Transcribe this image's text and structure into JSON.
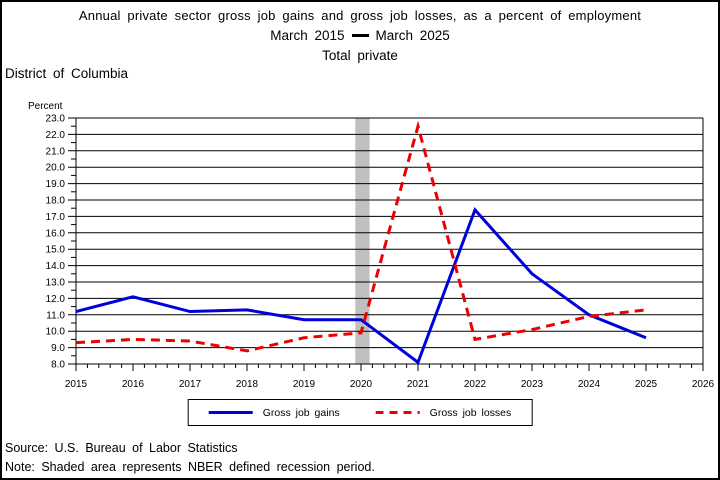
{
  "chart_data": {
    "type": "line",
    "title": "Annual private sector gross job gains and gross job losses, as a percent of employment",
    "period": {
      "from": "March 2015",
      "to": "March 2025"
    },
    "subtitle": "Total private",
    "region": "District of Columbia",
    "ylabel": "Percent",
    "xlabel": "",
    "x": [
      2015,
      2016,
      2017,
      2018,
      2019,
      2020,
      2021,
      2022,
      2023,
      2024,
      2025
    ],
    "series": [
      {
        "name": "Gross job gains",
        "color": "#0000dd",
        "style": "solid",
        "values": [
          11.2,
          12.1,
          11.2,
          11.3,
          10.7,
          10.7,
          8.1,
          17.4,
          13.5,
          11.0,
          9.6
        ]
      },
      {
        "name": "Gross job losses",
        "color": "#ee0000",
        "style": "dashed",
        "values": [
          9.3,
          9.5,
          9.4,
          8.8,
          9.6,
          9.9,
          22.5,
          9.5,
          10.1,
          10.9,
          11.3
        ]
      }
    ],
    "xlim": [
      2015,
      2026
    ],
    "ylim": [
      8.0,
      23.0
    ],
    "xticks": [
      2015,
      2016,
      2017,
      2018,
      2019,
      2020,
      2021,
      2022,
      2023,
      2024,
      2025,
      2026
    ],
    "x_minor_divisions": 5,
    "ytick_step": 1.0,
    "ytick_minor_step": 0.5,
    "grid": "horizontal-only",
    "legend_position": "bottom-center",
    "recession_band": {
      "x_from": 2019.9,
      "x_to": 2020.15,
      "color": "#c0c0c0"
    }
  },
  "footer": {
    "source": "Source: U.S. Bureau of Labor Statistics",
    "note": "Note: Shaded area represents NBER defined recession period."
  }
}
